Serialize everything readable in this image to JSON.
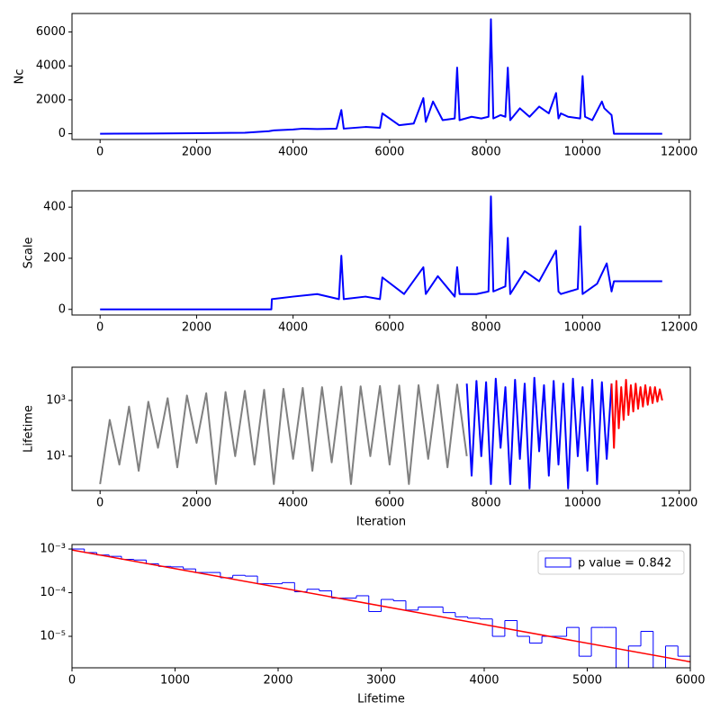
{
  "chart_data": [
    {
      "type": "line",
      "ylabel": "Nc",
      "xlim": [
        -582,
        12232
      ],
      "ylim": [
        -340,
        7090
      ],
      "xticks": [
        0,
        2000,
        4000,
        6000,
        8000,
        10000,
        12000
      ],
      "yticks": [
        0,
        2000,
        4000,
        6000
      ],
      "series": [
        {
          "color": "blue",
          "x": [
            0,
            1000,
            2000,
            3000,
            3500,
            3600,
            4000,
            4200,
            4500,
            4900,
            5000,
            5050,
            5500,
            5800,
            5850,
            6200,
            6500,
            6700,
            6750,
            6900,
            7100,
            7350,
            7400,
            7450,
            7700,
            7900,
            8050,
            8100,
            8150,
            8300,
            8400,
            8450,
            8500,
            8700,
            8900,
            9100,
            9300,
            9450,
            9500,
            9550,
            9700,
            9950,
            10000,
            10050,
            10200,
            10400,
            10450,
            10600,
            10650,
            10700,
            11650
          ],
          "values": [
            0,
            10,
            30,
            60,
            150,
            200,
            250,
            300,
            280,
            300,
            1400,
            300,
            400,
            350,
            1200,
            500,
            600,
            2100,
            700,
            1900,
            800,
            900,
            3900,
            800,
            1000,
            900,
            1000,
            6750,
            900,
            1100,
            1000,
            3900,
            800,
            1500,
            1000,
            1600,
            1200,
            2400,
            900,
            1200,
            1000,
            900,
            3400,
            1000,
            800,
            1900,
            1500,
            1100,
            0,
            0,
            0
          ]
        }
      ]
    },
    {
      "type": "line",
      "ylabel": "Scale",
      "xlim": [
        -582,
        12232
      ],
      "ylim": [
        -22,
        464
      ],
      "xticks": [
        0,
        2000,
        4000,
        6000,
        8000,
        10000,
        12000
      ],
      "yticks": [
        0,
        200,
        400
      ],
      "series": [
        {
          "color": "blue",
          "x": [
            0,
            3550,
            3560,
            4000,
            4500,
            4950,
            5000,
            5050,
            5500,
            5800,
            5850,
            6300,
            6700,
            6750,
            7000,
            7350,
            7400,
            7450,
            7800,
            8050,
            8100,
            8150,
            8400,
            8450,
            8500,
            8800,
            9100,
            9450,
            9500,
            9550,
            9900,
            9950,
            10000,
            10300,
            10500,
            10600,
            10650,
            11650
          ],
          "values": [
            0,
            0,
            40,
            50,
            60,
            40,
            210,
            40,
            50,
            40,
            125,
            60,
            165,
            60,
            130,
            50,
            165,
            60,
            60,
            70,
            442,
            70,
            90,
            280,
            60,
            150,
            110,
            230,
            70,
            60,
            80,
            325,
            60,
            100,
            180,
            70,
            110,
            110
          ]
        }
      ]
    },
    {
      "type": "line",
      "ylabel": "Lifetime",
      "xlabel": "Iteration",
      "log_y": true,
      "xlim": [
        -582,
        12232
      ],
      "ylim": [
        0.59,
        15500
      ],
      "xticks": [
        0,
        2000,
        4000,
        6000,
        8000,
        10000,
        12000
      ],
      "yticks": [
        {
          "value": 10,
          "label": "10¹"
        },
        {
          "value": 1000,
          "label": "10³"
        }
      ],
      "series": [
        {
          "color": "gray",
          "x": [
            0,
            200,
            400,
            600,
            800,
            1000,
            1200,
            1400,
            1600,
            1800,
            2000,
            2200,
            2400,
            2600,
            2800,
            3000,
            3200,
            3400,
            3600,
            3800,
            4000,
            4200,
            4400,
            4600,
            4800,
            5000,
            5200,
            5400,
            5600,
            5800,
            6000,
            6200,
            6400,
            6600,
            6800,
            7000,
            7200,
            7400,
            7600
          ],
          "values": [
            1,
            200,
            5,
            600,
            3,
            900,
            20,
            1200,
            4,
            1500,
            30,
            1800,
            1,
            2000,
            10,
            2200,
            5,
            2400,
            1,
            2600,
            8,
            2800,
            3,
            3000,
            6,
            3100,
            1,
            3200,
            10,
            3300,
            5,
            3400,
            1,
            3500,
            8,
            3600,
            4,
            3700,
            10
          ]
        },
        {
          "color": "blue",
          "x": [
            7600,
            7700,
            7800,
            7900,
            8000,
            8100,
            8200,
            8300,
            8400,
            8500,
            8600,
            8700,
            8800,
            8900,
            9000,
            9100,
            9200,
            9300,
            9400,
            9500,
            9600,
            9700,
            9800,
            9900,
            10000,
            10100,
            10200,
            10300,
            10400,
            10500,
            10600
          ],
          "values": [
            4000,
            2,
            5000,
            10,
            4500,
            1,
            6000,
            20,
            3000,
            1,
            5500,
            8,
            4000,
            0.7,
            6500,
            15,
            3500,
            2,
            5000,
            5,
            4000,
            0.7,
            6000,
            10,
            3000,
            3,
            5500,
            1,
            4500,
            8,
            4000
          ]
        },
        {
          "color": "red",
          "x": [
            10600,
            10650,
            10700,
            10750,
            10800,
            10850,
            10900,
            10950,
            11000,
            11050,
            11100,
            11150,
            11200,
            11250,
            11300,
            11350,
            11400,
            11450,
            11500,
            11550,
            11600,
            11650
          ],
          "values": [
            4000,
            20,
            5000,
            100,
            3000,
            200,
            5500,
            300,
            3500,
            400,
            4000,
            500,
            3000,
            600,
            3500,
            700,
            3000,
            800,
            3000,
            900,
            2500,
            1000
          ]
        }
      ]
    },
    {
      "type": "histogram",
      "xlabel": "Lifetime",
      "log_y": true,
      "xlim": [
        0,
        6000
      ],
      "ylim": [
        1.9e-06,
        0.00127
      ],
      "xticks": [
        0,
        1000,
        2000,
        3000,
        4000,
        5000,
        6000
      ],
      "yticks": [
        {
          "value": 1e-05,
          "label": "10⁻⁵"
        },
        {
          "value": 0.0001,
          "label": "10⁻⁴"
        },
        {
          "value": 0.001,
          "label": "10⁻³"
        }
      ],
      "name": "p value = 0.842",
      "color": "blue",
      "legend": "upper right",
      "bins": [
        0,
        120,
        240,
        360,
        480,
        600,
        720,
        840,
        960,
        1080,
        1200,
        1320,
        1440,
        1560,
        1680,
        1800,
        1920,
        2040,
        2160,
        2280,
        2400,
        2520,
        2640,
        2760,
        2880,
        3000,
        3120,
        3240,
        3360,
        3480,
        3600,
        3720,
        3840,
        3960,
        4080,
        4200,
        4320,
        4440,
        4560,
        4680,
        4800,
        4920,
        5040,
        5160,
        5280,
        5400,
        5520,
        5640,
        5760,
        5880,
        6000
      ],
      "values": [
        0.001,
        0.00083,
        0.00073,
        0.00068,
        0.00058,
        0.00056,
        0.00046,
        0.0004,
        0.00039,
        0.00035,
        0.00029,
        0.00029,
        0.00022,
        0.00025,
        0.00024,
        0.00016,
        0.00016,
        0.00017,
        0.000105,
        0.00012,
        0.00011,
        7.5e-05,
        7.5e-05,
        8.5e-05,
        3.7e-05,
        7e-05,
        6.5e-05,
        4e-05,
        4.7e-05,
        4.7e-05,
        3.5e-05,
        2.8e-05,
        2.6e-05,
        2.5e-05,
        1e-05,
        2.3e-05,
        1e-05,
        7e-06,
        1e-05,
        1e-05,
        1.6e-05,
        3.5e-06,
        1.6e-05,
        1.6e-05,
        0,
        6e-06,
        1.3e-05,
        0,
        6e-06,
        3.5e-06
      ],
      "fit": {
        "color": "red",
        "x": [
          0,
          6000
        ],
        "values": [
          0.00095,
          2.6e-06
        ]
      }
    }
  ]
}
